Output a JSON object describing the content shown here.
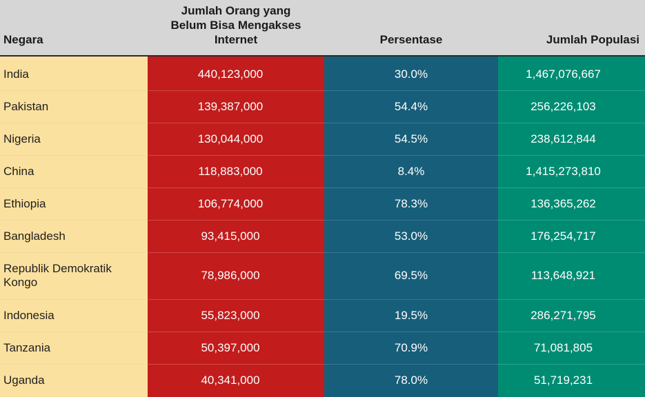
{
  "headers": {
    "country": "Negara",
    "offline_line1": "Jumlah Orang yang",
    "offline_line2": "Belum Bisa Mengakses",
    "offline_line3": "Internet",
    "percentage": "Persentase",
    "population": "Jumlah Populasi"
  },
  "colors": {
    "header_bg": "#d6d6d6",
    "country_col": "#fbe19f",
    "offline_col": "#c21c1c",
    "percentage_col": "#175e7a",
    "population_col": "#008c73"
  },
  "chart_data": {
    "type": "table",
    "columns": [
      "Negara",
      "Jumlah Orang yang Belum Bisa Mengakses Internet",
      "Persentase",
      "Jumlah Populasi"
    ],
    "rows": [
      {
        "country": "India",
        "offline": "440,123,000",
        "percentage": "30.0%",
        "population": "1,467,076,667"
      },
      {
        "country": "Pakistan",
        "offline": "139,387,000",
        "percentage": "54.4%",
        "population": "256,226,103"
      },
      {
        "country": "Nigeria",
        "offline": "130,044,000",
        "percentage": "54.5%",
        "population": "238,612,844"
      },
      {
        "country": "China",
        "offline": "118,883,000",
        "percentage": "8.4%",
        "population": "1,415,273,810"
      },
      {
        "country": "Ethiopia",
        "offline": "106,774,000",
        "percentage": "78.3%",
        "population": "136,365,262"
      },
      {
        "country": "Bangladesh",
        "offline": "93,415,000",
        "percentage": "53.0%",
        "population": "176,254,717"
      },
      {
        "country": "Republik Demokratik Kongo",
        "offline": "78,986,000",
        "percentage": "69.5%",
        "population": "113,648,921"
      },
      {
        "country": "Indonesia",
        "offline": "55,823,000",
        "percentage": "19.5%",
        "population": "286,271,795"
      },
      {
        "country": "Tanzania",
        "offline": "50,397,000",
        "percentage": "70.9%",
        "population": "71,081,805"
      },
      {
        "country": "Uganda",
        "offline": "40,341,000",
        "percentage": "78.0%",
        "population": "51,719,231"
      }
    ]
  }
}
